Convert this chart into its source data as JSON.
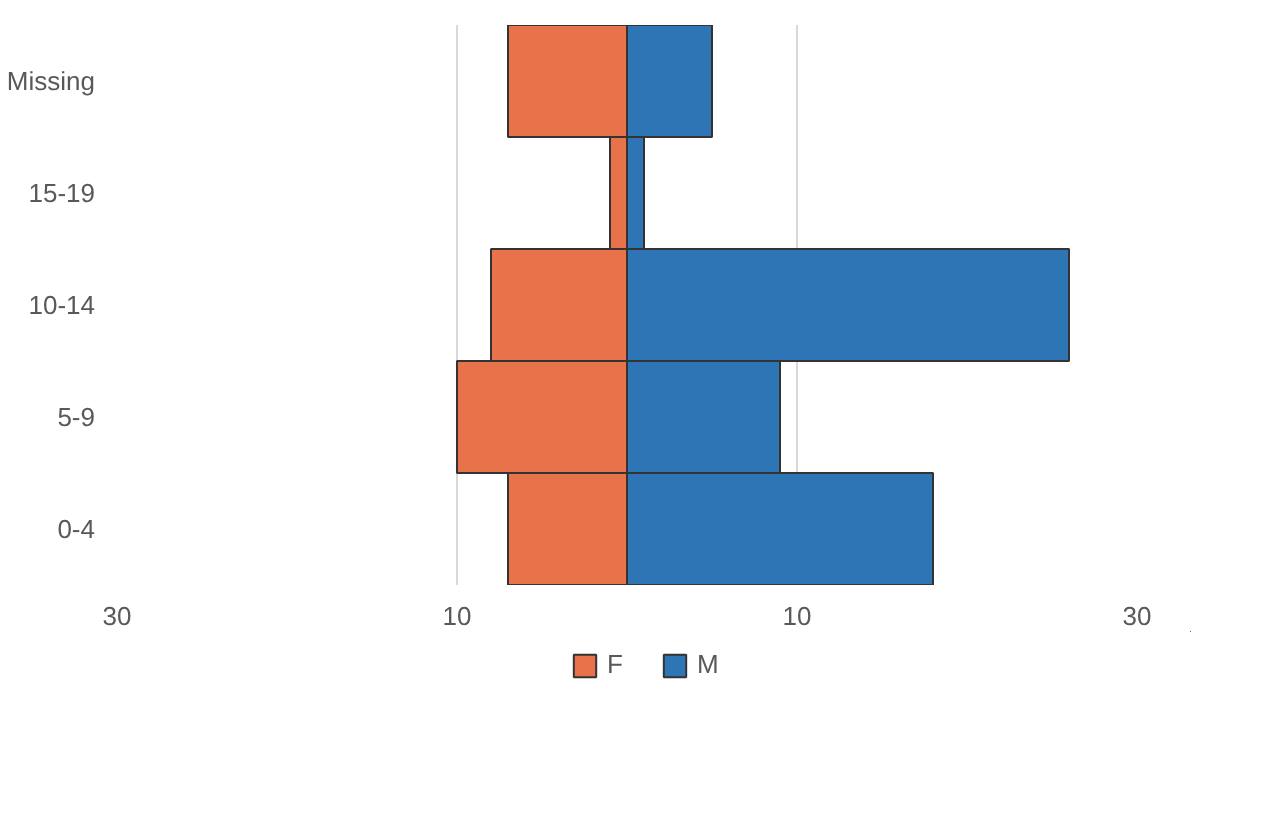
{
  "chart_data": {
    "type": "bar",
    "orientation": "horizontal",
    "categories": [
      "Missing",
      "15-19",
      "10-14",
      "5-9",
      "0-4"
    ],
    "series": [
      {
        "name": "F",
        "color": "#e8734a",
        "values": [
          -7,
          -1,
          -8,
          -10,
          -7
        ]
      },
      {
        "name": "M",
        "color": "#2e75b6",
        "values": [
          5,
          1,
          26,
          9,
          18
        ]
      }
    ],
    "stacked": true,
    "xlim": [
      -30,
      30
    ],
    "xticks": [
      {
        "value": -30,
        "label": "30"
      },
      {
        "value": -10,
        "label": "10"
      },
      {
        "value": 10,
        "label": "10"
      },
      {
        "value": 30,
        "label": "30"
      }
    ],
    "grid": "x",
    "legend": "bottom"
  }
}
